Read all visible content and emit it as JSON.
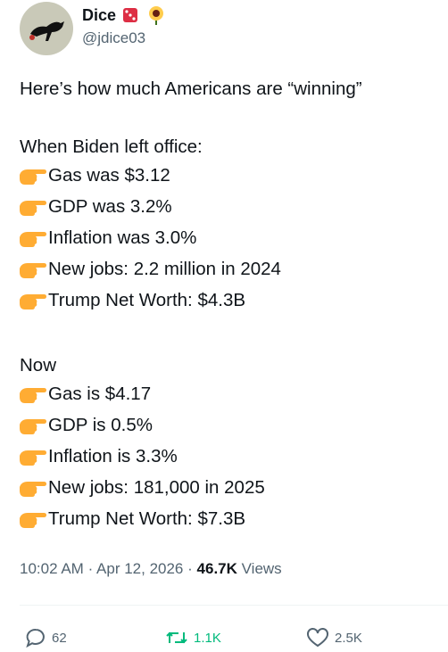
{
  "author": {
    "name": "Dice",
    "handle": "@jdice03"
  },
  "post": {
    "intro": "Here’s how much Americans are “winning”",
    "sections": [
      {
        "heading": "When Biden left office:",
        "items": [
          "Gas was $3.12",
          "GDP was 3.2%",
          "Inflation was 3.0%",
          "New jobs: 2.2 million in 2024",
          "Trump Net Worth: $4.3B"
        ]
      },
      {
        "heading": "Now",
        "items": [
          "Gas is $4.17",
          "GDP is 0.5%",
          "Inflation is 3.3%",
          "New jobs: 181,000 in 2025",
          "Trump Net Worth: $7.3B"
        ]
      }
    ]
  },
  "meta": {
    "time": "10:02 AM",
    "separator": "·",
    "date": "Apr 12, 2026",
    "views": "46.7K",
    "views_label": "Views"
  },
  "actions": {
    "replies": "62",
    "reposts": "1.1K",
    "likes": "2.5K"
  }
}
